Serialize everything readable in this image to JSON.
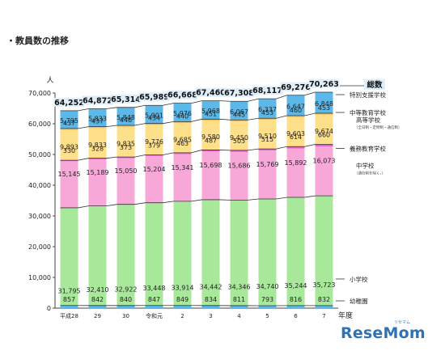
{
  "title": "・教員数の推移",
  "brand": {
    "name": "ReseMom",
    "sub": "リセマム"
  },
  "chart_data": {
    "type": "bar",
    "stacked": true,
    "y_unit": "人",
    "x_unit": "年度",
    "ylim": [
      0,
      70000
    ],
    "yticks": [
      "0",
      "10,000",
      "20,000",
      "30,000",
      "40,000",
      "50,000",
      "60,000",
      "70,000"
    ],
    "categories": [
      "平成28",
      "29",
      "30",
      "令和元",
      "2",
      "3",
      "4",
      "5",
      "6",
      "7"
    ],
    "series": [
      {
        "name": "幼稚園",
        "color": "#5bb8e8",
        "values": [
          857,
          842,
          840,
          847,
          849,
          834,
          811,
          793,
          816,
          832
        ],
        "labels": [
          "857",
          "842",
          "840",
          "847",
          "849",
          "834",
          "811",
          "793",
          "816",
          "832"
        ]
      },
      {
        "name": "小学校",
        "color": "#a8e89a",
        "values": [
          31795,
          32410,
          32922,
          33448,
          33914,
          34442,
          34346,
          34740,
          35244,
          35723
        ],
        "labels": [
          "31,795",
          "32,410",
          "32,922",
          "33,448",
          "33,914",
          "34,442",
          "34,346",
          "34,740",
          "35,244",
          "35,723"
        ]
      },
      {
        "name": "中学校",
        "sub": "（通信制を除く。）",
        "color": "#f8a8d8",
        "values": [
          15145,
          15189,
          15050,
          15204,
          15341,
          15698,
          15686,
          15769,
          15892,
          16073
        ],
        "labels": [
          "15,145",
          "15,189",
          "15,050",
          "15,204",
          "15,341",
          "15,698",
          "15,686",
          "15,769",
          "15,892",
          "16,073"
        ]
      },
      {
        "name": "義務教育学校",
        "color": "#e860c8",
        "values": [
          330,
          328,
          373,
          379,
          463,
          487,
          503,
          515,
          614,
          660
        ],
        "labels": [
          "330",
          "328",
          "373",
          "379",
          "463",
          "487",
          "503",
          "515",
          "614",
          "660"
        ]
      },
      {
        "name": "高等学校",
        "sub": "（全日制・定時制・通信制）",
        "color": "#ffe08a",
        "values": [
          9893,
          9833,
          9835,
          9776,
          9685,
          9580,
          9450,
          9510,
          9603,
          9674
        ],
        "labels": [
          "9,893",
          "9,833",
          "9,835",
          "9,776",
          "9,685",
          "9,580",
          "9,450",
          "9,510",
          "9,603",
          "9,674"
        ]
      },
      {
        "name": "中等教育学校",
        "color": "#f8b84a",
        "values": [
          437,
          437,
          446,
          434,
          440,
          451,
          445,
          453,
          460,
          453
        ],
        "labels": [
          "437",
          "437",
          "446",
          "434",
          "440",
          "451",
          "445",
          "453",
          "460",
          "453"
        ]
      },
      {
        "name": "特別支援学校",
        "color": "#5bb8e8",
        "values": [
          5795,
          5833,
          5848,
          5901,
          5976,
          5968,
          6067,
          6337,
          6647,
          6848
        ],
        "labels": [
          "5,795",
          "5,833",
          "5,848",
          "5,901",
          "5,976",
          "5,968",
          "6,067",
          "6,337",
          "6,647",
          "6,848"
        ]
      }
    ],
    "total": {
      "name": "総数",
      "values": [
        64252,
        64872,
        65314,
        65989,
        66668,
        67460,
        67308,
        68117,
        69276,
        70263
      ],
      "labels": [
        "64,252",
        "64,872",
        "65,314",
        "65,989",
        "66,668",
        "67,460",
        "67,308",
        "68,117",
        "69,276",
        "70,263"
      ]
    }
  }
}
